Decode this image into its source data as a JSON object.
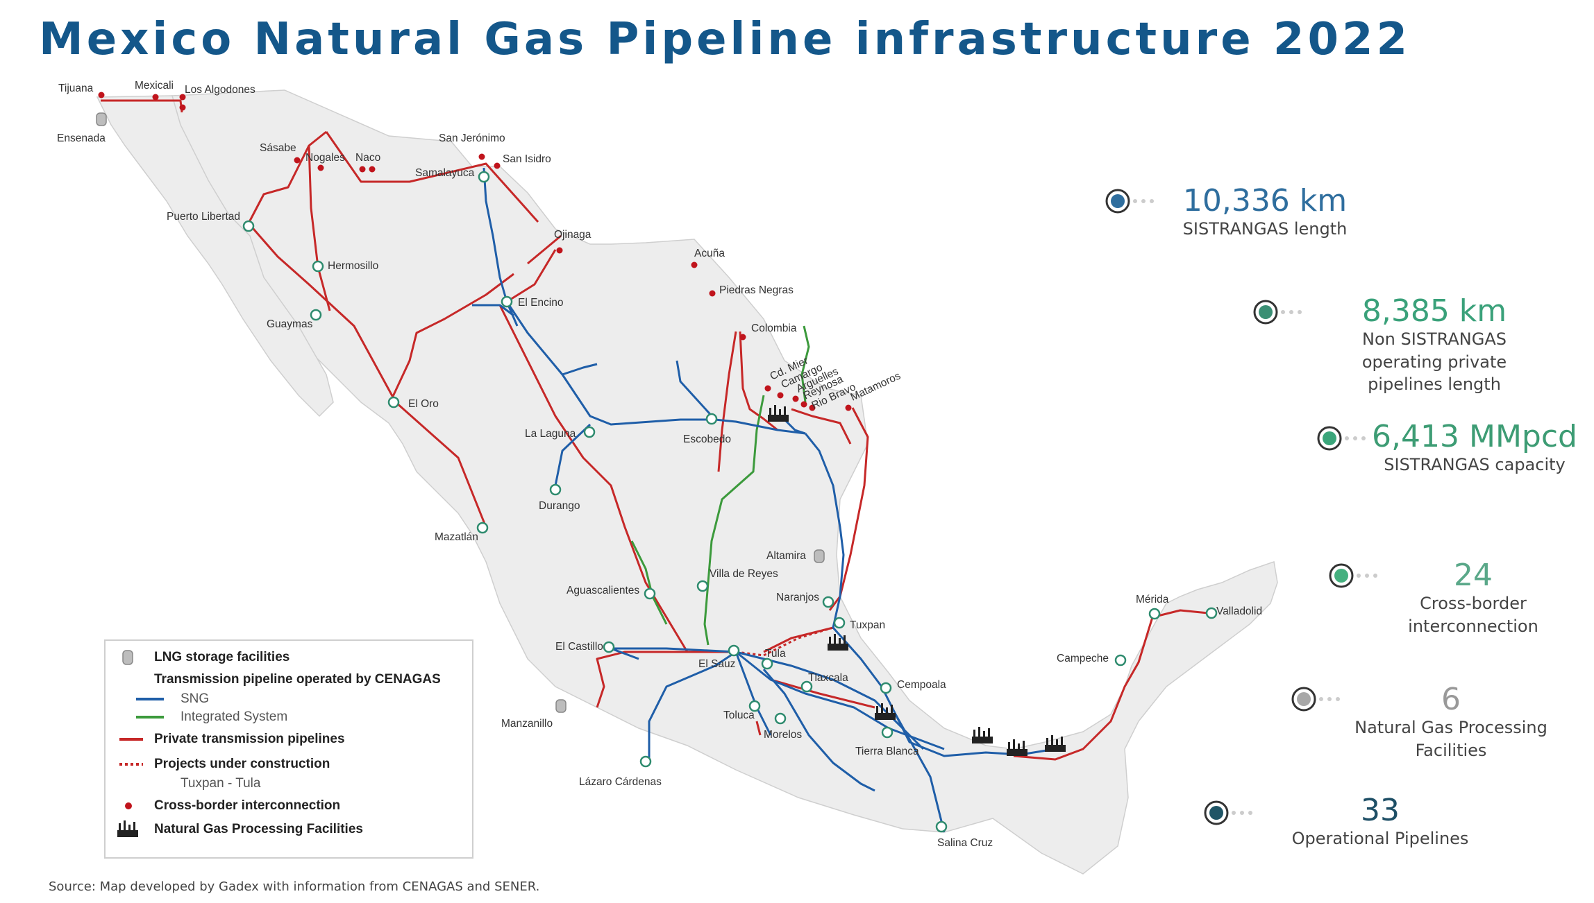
{
  "title": "Mexico Natural Gas Pipeline infrastructure 2022",
  "source": "Source: Map developed by Gadex with information from CENAGAS and SENER.",
  "colors": {
    "sng": "#1f5ea8",
    "integrated": "#3c9a3c",
    "private": "#c62828",
    "border_point": "#c0141c",
    "node": "#2e8b6e",
    "land": "#ededed"
  },
  "stats": [
    {
      "value": "10,336 km",
      "label": "SISTRANGAS length",
      "color": "#2f6e9e",
      "dot": "#2f6e9e"
    },
    {
      "value": "8,385 km",
      "label": "Non SISTRANGAS operating private pipelines length",
      "color": "#3aa17a",
      "dot": "#3a8f74"
    },
    {
      "value": "6,413 MMpcd",
      "label": "SISTRANGAS capacity",
      "color": "#3d9c74",
      "dot": "#3aa57a"
    },
    {
      "value": "24",
      "label": "Cross-border interconnection",
      "color": "#5aa889",
      "dot": "#45b07f"
    },
    {
      "value": "6",
      "label": "Natural Gas Processing Facilities",
      "color": "#999999",
      "dot": "#a8a8a8"
    },
    {
      "value": "33",
      "label": "Operational Pipelines",
      "color": "#1e4f66",
      "dot": "#1f5566"
    }
  ],
  "legend": {
    "lng": "LNG storage facilities",
    "cenagas": "Transmission pipeline operated by CENAGAS",
    "sng": "SNG",
    "integrated": "Integrated System",
    "private": "Private transmission pipelines",
    "construction": "Projects under construction",
    "construction_sub": "Tuxpan - Tula",
    "border": "Cross-border interconnection",
    "processing": "Natural Gas Processing Facilities"
  },
  "cities": [
    {
      "name": "Tijuana"
    },
    {
      "name": "Mexicali"
    },
    {
      "name": "Los Algodones"
    },
    {
      "name": "Ensenada"
    },
    {
      "name": "Sásabe"
    },
    {
      "name": "Nogales"
    },
    {
      "name": "Naco"
    },
    {
      "name": "San Jerónimo"
    },
    {
      "name": "San Isidro"
    },
    {
      "name": "Samalayuca"
    },
    {
      "name": "Puerto Libertad"
    },
    {
      "name": "Hermosillo"
    },
    {
      "name": "Guaymas"
    },
    {
      "name": "Ojinaga"
    },
    {
      "name": "Acuña"
    },
    {
      "name": "Piedras Negras"
    },
    {
      "name": "El Encino"
    },
    {
      "name": "Colombia"
    },
    {
      "name": "Cd. Mier"
    },
    {
      "name": "Camargo"
    },
    {
      "name": "Arguelles"
    },
    {
      "name": "Reynosa"
    },
    {
      "name": "Rio Bravo"
    },
    {
      "name": "Matamoros"
    },
    {
      "name": "El Oro"
    },
    {
      "name": "La Laguna"
    },
    {
      "name": "Escobedo"
    },
    {
      "name": "Durango"
    },
    {
      "name": "Mazatlán"
    },
    {
      "name": "Altamira"
    },
    {
      "name": "Villa de Reyes"
    },
    {
      "name": "Aguascalientes"
    },
    {
      "name": "Naranjos"
    },
    {
      "name": "Tuxpan"
    },
    {
      "name": "El Castillo"
    },
    {
      "name": "Tula"
    },
    {
      "name": "El Sauz"
    },
    {
      "name": "Tlaxcala"
    },
    {
      "name": "Cempoala"
    },
    {
      "name": "Manzanillo"
    },
    {
      "name": "Toluca"
    },
    {
      "name": "Morelos"
    },
    {
      "name": "Tierra Blanca"
    },
    {
      "name": "Lázaro Cárdenas"
    },
    {
      "name": "Salina Cruz"
    },
    {
      "name": "Mérida"
    },
    {
      "name": "Valladolid"
    },
    {
      "name": "Campeche"
    }
  ]
}
